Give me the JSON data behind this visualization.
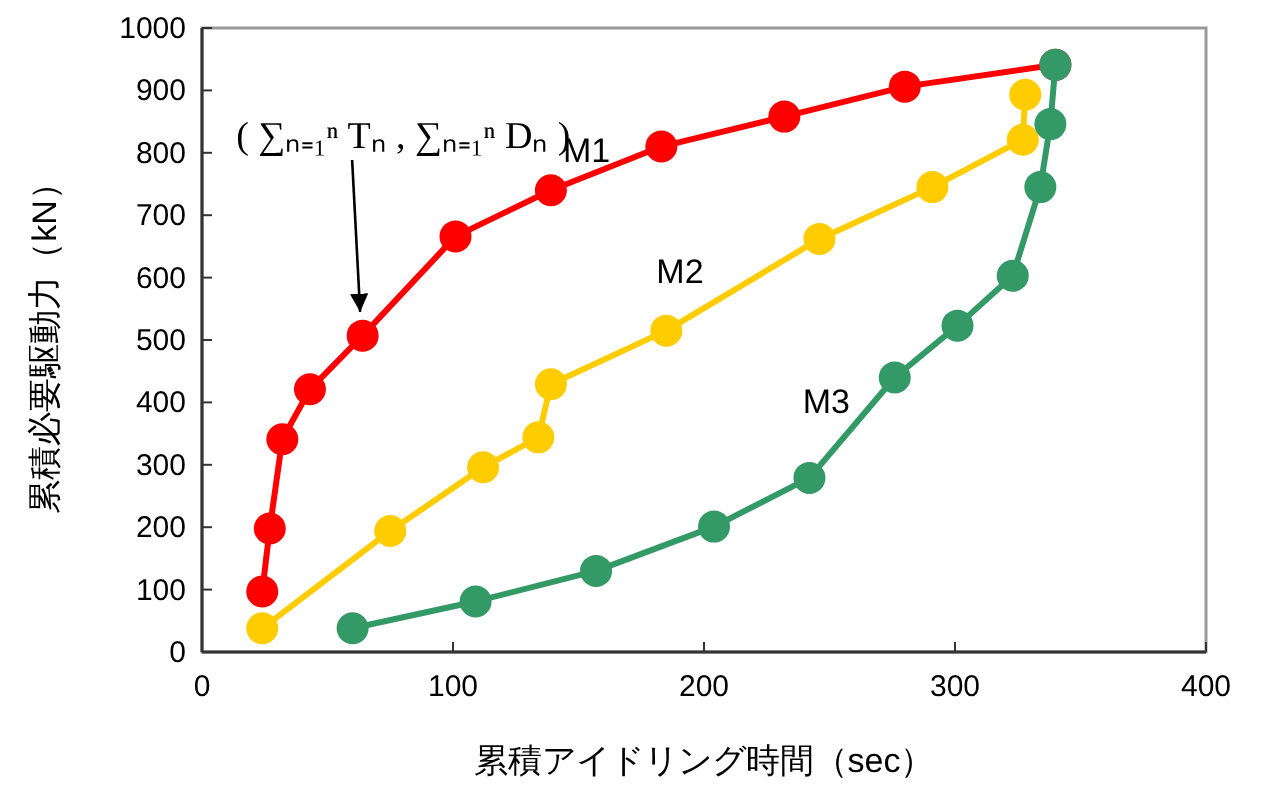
{
  "chart_data": {
    "type": "line",
    "xlabel": "累積アイドリング時間（sec）",
    "ylabel": "累積必要駆動力（kN）",
    "xlim": [
      0,
      400
    ],
    "xticks": [
      0,
      100,
      200,
      300,
      400
    ],
    "ylim": [
      0,
      1000
    ],
    "yticks": [
      0,
      100,
      200,
      300,
      400,
      500,
      600,
      700,
      800,
      900,
      1000
    ],
    "grid": false,
    "legend": false,
    "marker": "circle",
    "line_style": "solid",
    "series": [
      {
        "name": "M1",
        "color": "#ff0000",
        "x": [
          24,
          27,
          32,
          43,
          64,
          101,
          139,
          183,
          232,
          280,
          340
        ],
        "values": [
          97,
          198,
          341,
          421,
          507,
          666,
          740,
          810,
          858,
          906,
          941
        ]
      },
      {
        "name": "M2",
        "color": "#ffcc00",
        "x": [
          24,
          75,
          112,
          134,
          139,
          185,
          246,
          291,
          327,
          328
        ],
        "values": [
          38,
          194,
          296,
          344,
          429,
          515,
          662,
          745,
          821,
          893
        ]
      },
      {
        "name": "M3",
        "color": "#339966",
        "x": [
          60,
          109,
          157,
          204,
          242,
          276,
          301,
          323,
          334,
          338,
          340
        ],
        "values": [
          38,
          81,
          130,
          201,
          279,
          440,
          523,
          603,
          745,
          846,
          941
        ]
      }
    ],
    "annotations": [
      {
        "text": "( ∑ₙ₌₁ⁿ Tₙ , ∑ₙ₌₁ⁿ Dₙ )",
        "x": 63,
        "y": 545
      }
    ]
  }
}
